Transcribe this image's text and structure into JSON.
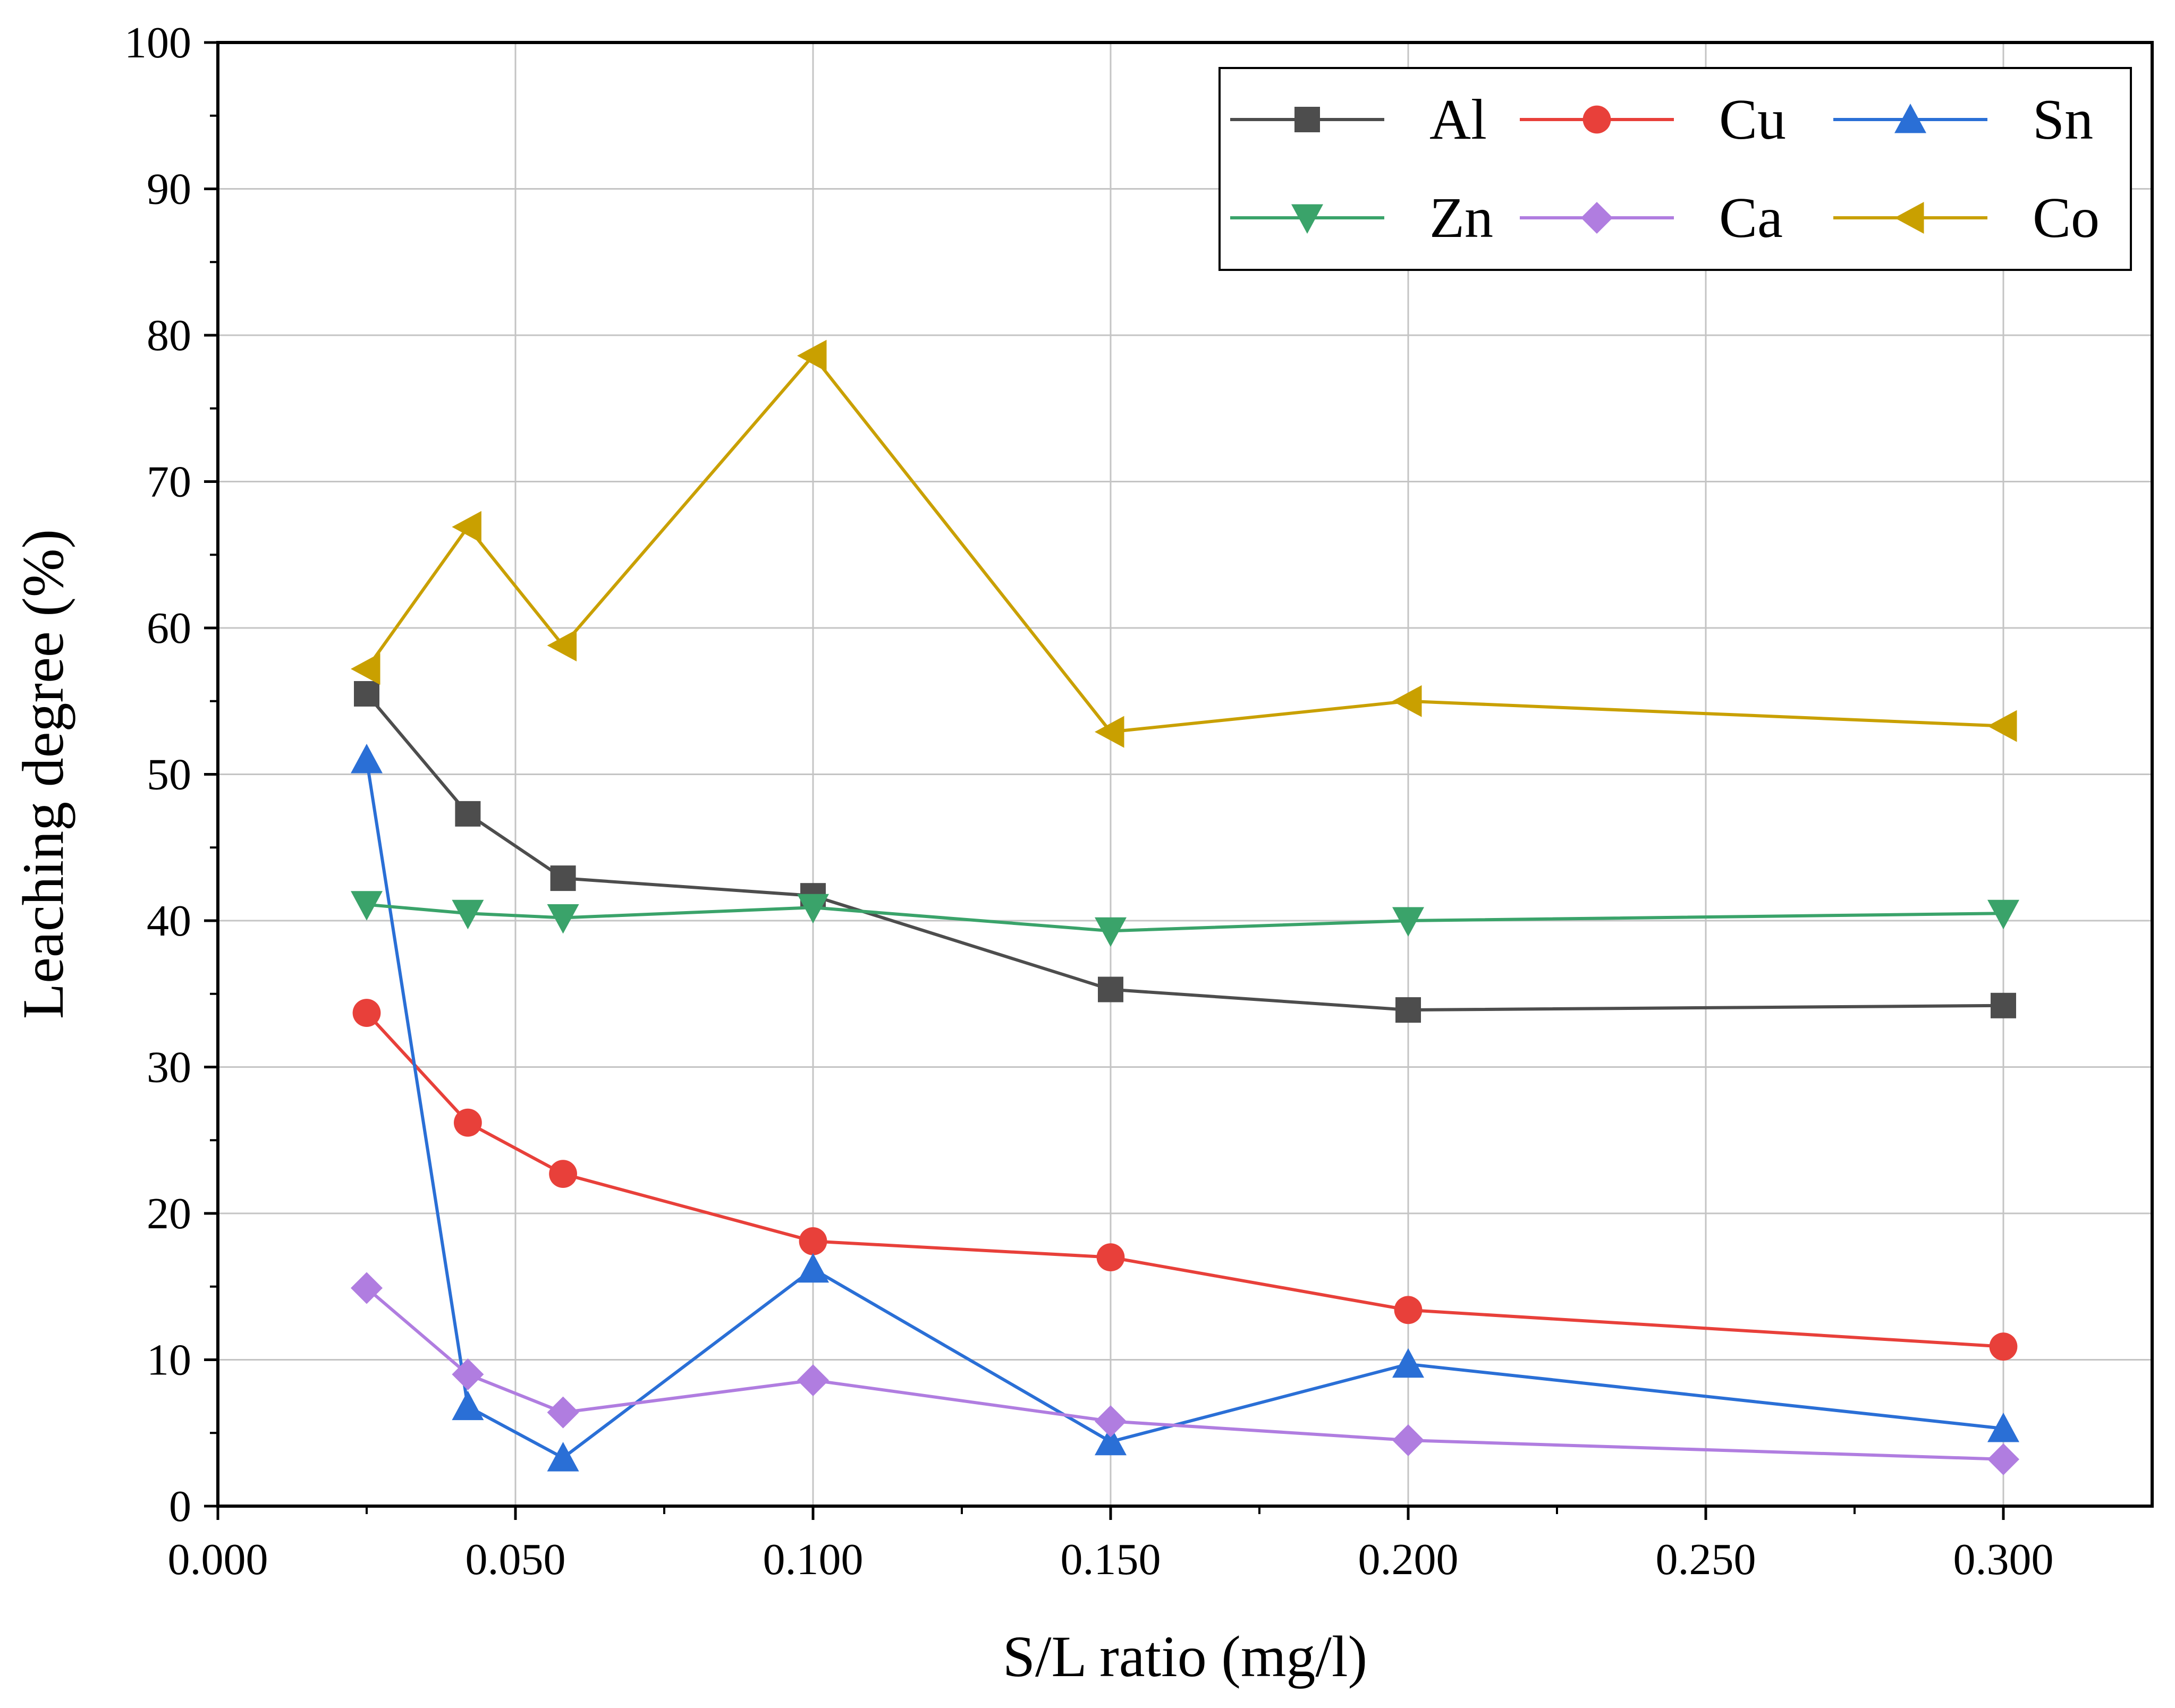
{
  "chart_data": {
    "type": "line",
    "title": "",
    "xlabel": "S/L ratio (mg/l)",
    "ylabel": "Leaching degree (%)",
    "xlim": [
      0.0,
      0.325
    ],
    "ylim": [
      0,
      100
    ],
    "xticks": [
      0.0,
      0.05,
      0.1,
      0.15,
      0.2,
      0.25,
      0.3
    ],
    "xtick_labels": [
      "0.000",
      "0.050",
      "0.100",
      "0.150",
      "0.200",
      "0.250",
      "0.300"
    ],
    "yticks": [
      0,
      10,
      20,
      30,
      40,
      50,
      60,
      70,
      80,
      90,
      100
    ],
    "ytick_labels": [
      "0",
      "10",
      "20",
      "30",
      "40",
      "50",
      "60",
      "70",
      "80",
      "90",
      "100"
    ],
    "grid": true,
    "legend_position": "top-right",
    "x": [
      0.025,
      0.042,
      0.058,
      0.1,
      0.15,
      0.2,
      0.3
    ],
    "series": [
      {
        "name": "Al",
        "color": "#4d4d4d",
        "marker": "square",
        "values": [
          55.5,
          47.3,
          42.9,
          41.7,
          35.3,
          33.9,
          34.2
        ]
      },
      {
        "name": "Cu",
        "color": "#e8403a",
        "marker": "circle",
        "values": [
          33.7,
          26.2,
          22.7,
          18.1,
          17.0,
          13.4,
          10.9
        ]
      },
      {
        "name": "Sn",
        "color": "#2a6fd6",
        "marker": "triangle-up",
        "values": [
          51.0,
          6.8,
          3.3,
          16.2,
          4.4,
          9.7,
          5.3
        ]
      },
      {
        "name": "Zn",
        "color": "#3aa36a",
        "marker": "triangle-down",
        "values": [
          41.1,
          40.5,
          40.2,
          40.9,
          39.3,
          40.0,
          40.5
        ]
      },
      {
        "name": "Ca",
        "color": "#b07de0",
        "marker": "diamond",
        "values": [
          14.9,
          9.0,
          6.4,
          8.6,
          5.8,
          4.5,
          3.2
        ]
      },
      {
        "name": "Co",
        "color": "#c9a000",
        "marker": "triangle-left",
        "values": [
          57.2,
          66.9,
          58.8,
          78.6,
          52.9,
          55.0,
          53.3
        ]
      }
    ]
  }
}
